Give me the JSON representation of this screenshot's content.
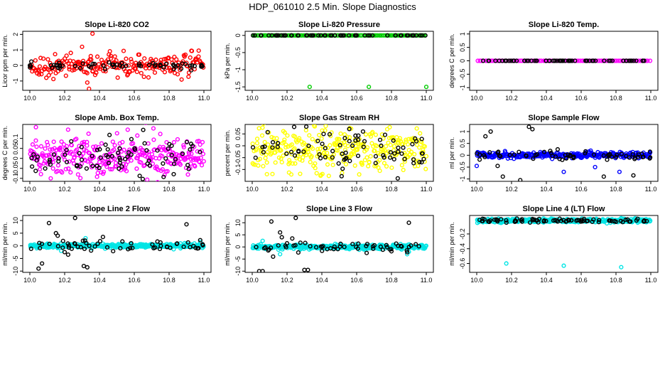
{
  "figure": {
    "title": "HDP_061010  2.5 Min. Slope Diagnostics"
  },
  "chart_data": [
    {
      "type": "scatter",
      "title": "Slope Li-820 CO2",
      "xlabel": "",
      "ylabel": "Licor ppm per min.",
      "xlim": [
        10.0,
        11.0
      ],
      "ylim": [
        -1.6,
        2.2
      ],
      "xticks": [
        "10.0",
        "10.2",
        "10.4",
        "10.6",
        "10.8",
        "11.0"
      ],
      "yticks": [
        -1,
        0,
        1,
        2
      ],
      "colors": {
        "main": "#ff0000",
        "flagged": "#000000"
      },
      "pattern": {
        "kind": "noise",
        "center": 0,
        "spread": 0.35,
        "n": 230,
        "outliers": [
          [
            10.36,
            2.05
          ],
          [
            10.33,
            -1.1
          ],
          [
            10.34,
            -1.5
          ],
          [
            10.3,
            1.2
          ]
        ]
      },
      "flagged_pattern": {
        "center": 0,
        "spread": 0.12,
        "n": 60
      }
    },
    {
      "type": "scatter",
      "title": "Slope Li-820 Pressure",
      "xlabel": "",
      "ylabel": "kPa per min.",
      "xlim": [
        10.0,
        11.0
      ],
      "ylim": [
        -1.6,
        0.12
      ],
      "xticks": [
        "10.0",
        "10.2",
        "10.4",
        "10.6",
        "10.8",
        "11.0"
      ],
      "yticks": [
        -1.5,
        -1,
        -0.5,
        0
      ],
      "colors": {
        "main": "#00cc00",
        "flagged": "#000000"
      },
      "pattern": {
        "kind": "flat",
        "center": 0,
        "spread": 0,
        "n": 120,
        "outliers": [
          [
            10.33,
            -1.5
          ],
          [
            10.67,
            -1.5
          ],
          [
            11.0,
            -1.5
          ]
        ]
      },
      "flagged_pattern": {
        "center": 0,
        "spread": 0,
        "n": 60
      }
    },
    {
      "type": "scatter",
      "title": "Slope Li-820 Temp.",
      "xlabel": "",
      "ylabel": "degrees C per min.",
      "xlim": [
        10.0,
        11.0
      ],
      "ylim": [
        -1.1,
        1.1
      ],
      "xticks": [
        "10.0",
        "10.2",
        "10.4",
        "10.6",
        "10.8",
        "11.0"
      ],
      "yticks": [
        -1,
        -0.5,
        0,
        0.5,
        1
      ],
      "colors": {
        "main": "#ff00ff",
        "flagged": "#000000"
      },
      "pattern": {
        "kind": "flat",
        "center": 0,
        "spread": 0,
        "n": 90,
        "outliers": []
      },
      "flagged_pattern": {
        "center": 0,
        "spread": 0,
        "n": 70
      }
    },
    {
      "type": "scatter",
      "title": "Slope Amb. Box Temp.",
      "xlabel": "",
      "ylabel": "degrees C per min.",
      "xlim": [
        10.0,
        11.0
      ],
      "ylim": [
        -0.115,
        0.17
      ],
      "xticks": [
        "10.0",
        "10.2",
        "10.4",
        "10.6",
        "10.8",
        "11.0"
      ],
      "yticks": [
        -0.1,
        -0.05,
        0,
        0.05,
        0.1
      ],
      "colors": {
        "main": "#ff00ff",
        "flagged": "#000000"
      },
      "pattern": {
        "kind": "noise",
        "center": 0.01,
        "spread": 0.05,
        "n": 320,
        "outliers": [
          [
            10.71,
            0.15
          ],
          [
            10.12,
            -0.1
          ]
        ]
      },
      "flagged_pattern": {
        "center": 0.01,
        "spread": 0.05,
        "n": 80
      }
    },
    {
      "type": "scatter",
      "title": "Slope Gas Stream RH",
      "xlabel": "",
      "ylabel": "percent per min.",
      "xlim": [
        10.0,
        11.0
      ],
      "ylim": [
        -0.15,
        0.09
      ],
      "xticks": [
        "10.0",
        "10.2",
        "10.4",
        "10.6",
        "10.8",
        "11.0"
      ],
      "yticks": [
        -0.1,
        -0.05,
        0,
        0.05
      ],
      "colors": {
        "main": "#ffff00",
        "flagged": "#000000"
      },
      "pattern": {
        "kind": "noise",
        "center": -0.02,
        "spread": 0.045,
        "n": 320,
        "outliers": []
      },
      "flagged_pattern": {
        "center": -0.02,
        "spread": 0.045,
        "n": 80
      }
    },
    {
      "type": "scatter",
      "title": "Slope Sample Flow",
      "xlabel": "",
      "ylabel": "ml per min.",
      "xlim": [
        10.0,
        11.0
      ],
      "ylim": [
        -1.1,
        1.3
      ],
      "xticks": [
        "10.0",
        "10.2",
        "10.4",
        "10.6",
        "10.8",
        "11.0"
      ],
      "yticks": [
        -1,
        -0.5,
        0,
        0.5,
        1
      ],
      "colors": {
        "main": "#0000ff",
        "flagged": "#000000"
      },
      "pattern": {
        "kind": "noise",
        "center": 0,
        "spread": 0.06,
        "n": 320,
        "outliers": [
          [
            10.5,
            -0.7
          ],
          [
            10.68,
            -0.5
          ],
          [
            10.82,
            -0.7
          ],
          [
            10.0,
            -0.45
          ]
        ]
      },
      "flagged_pattern": {
        "center": 0,
        "spread": 0.1,
        "n": 60,
        "outliers": [
          [
            10.05,
            0.8
          ],
          [
            10.08,
            1.0
          ],
          [
            10.3,
            1.2
          ],
          [
            10.32,
            1.1
          ],
          [
            10.15,
            -0.9
          ],
          [
            10.25,
            -1.05
          ],
          [
            10.73,
            -0.9
          ],
          [
            10.9,
            -0.85
          ],
          [
            10.12,
            -0.45
          ]
        ]
      }
    },
    {
      "type": "scatter",
      "title": "Slope Line 2 Flow",
      "xlabel": "",
      "ylabel": "ml/min per min.",
      "xlim": [
        10.0,
        11.0
      ],
      "ylim": [
        -10.5,
        12
      ],
      "xticks": [
        "10.0",
        "10.2",
        "10.4",
        "10.6",
        "10.8",
        "11.0"
      ],
      "yticks": [
        -10,
        -5,
        0,
        5,
        10
      ],
      "colors": {
        "main": "#00e5e5",
        "flagged": "#000000"
      },
      "pattern": {
        "kind": "noise",
        "center": 0,
        "spread": 0.4,
        "n": 340,
        "outliers": [
          [
            10.32,
            3.0
          ],
          [
            10.18,
            -2.0
          ],
          [
            10.98,
            1.5
          ]
        ]
      },
      "flagged_pattern": {
        "center": 0,
        "spread": 1.0,
        "n": 55,
        "outliers": [
          [
            10.05,
            -9.0
          ],
          [
            10.07,
            -7.0
          ],
          [
            10.11,
            9.0
          ],
          [
            10.15,
            5.0
          ],
          [
            10.16,
            4.0
          ],
          [
            10.26,
            11.0
          ],
          [
            10.31,
            -8.0
          ],
          [
            10.33,
            -8.5
          ],
          [
            10.22,
            -3.5
          ],
          [
            10.42,
            3.5
          ],
          [
            10.9,
            8.5
          ],
          [
            10.2,
            -2.5
          ]
        ]
      }
    },
    {
      "type": "scatter",
      "title": "Slope Line 3 Flow",
      "xlabel": "",
      "ylabel": "ml/min per min.",
      "xlim": [
        10.0,
        11.0
      ],
      "ylim": [
        -10.5,
        13
      ],
      "xticks": [
        "10.0",
        "10.2",
        "10.4",
        "10.6",
        "10.8",
        "11.0"
      ],
      "yticks": [
        -10,
        -5,
        0,
        5,
        10
      ],
      "colors": {
        "main": "#00e5e5",
        "flagged": "#000000"
      },
      "pattern": {
        "kind": "noise",
        "center": 0,
        "spread": 0.45,
        "n": 340,
        "outliers": [
          [
            10.06,
            2.5
          ],
          [
            10.16,
            -3.0
          ],
          [
            10.89,
            -3.0
          ],
          [
            10.9,
            -2.0
          ]
        ]
      },
      "flagged_pattern": {
        "center": 0,
        "spread": 1.0,
        "n": 55,
        "outliers": [
          [
            10.04,
            -10.0
          ],
          [
            10.06,
            -10.0
          ],
          [
            10.11,
            10.5
          ],
          [
            10.16,
            6.0
          ],
          [
            10.17,
            4.0
          ],
          [
            10.2,
            1.5
          ],
          [
            10.25,
            12.0
          ],
          [
            10.3,
            -9.5
          ],
          [
            10.32,
            -9.5
          ],
          [
            10.12,
            -4.0
          ],
          [
            10.9,
            10.0
          ],
          [
            10.23,
            3.5
          ]
        ]
      }
    },
    {
      "type": "scatter",
      "title": "Slope Line 4 (LT) Flow",
      "xlabel": "",
      "ylabel": "ml/min per min.",
      "xlim": [
        10.0,
        11.0
      ],
      "ylim": [
        -0.72,
        0.05
      ],
      "xticks": [
        "10.0",
        "10.2",
        "10.4",
        "10.6",
        "10.8",
        "11.0"
      ],
      "yticks": [
        -0.6,
        -0.4,
        -0.2
      ],
      "colors": {
        "main": "#00e5e5",
        "flagged": "#000000"
      },
      "pattern": {
        "kind": "noise",
        "center": -0.02,
        "spread": 0.012,
        "n": 360,
        "outliers": [
          [
            10.17,
            -0.6
          ],
          [
            10.5,
            -0.63
          ],
          [
            10.83,
            -0.65
          ]
        ]
      },
      "flagged_pattern": {
        "center": -0.02,
        "spread": 0.015,
        "n": 80
      }
    }
  ]
}
